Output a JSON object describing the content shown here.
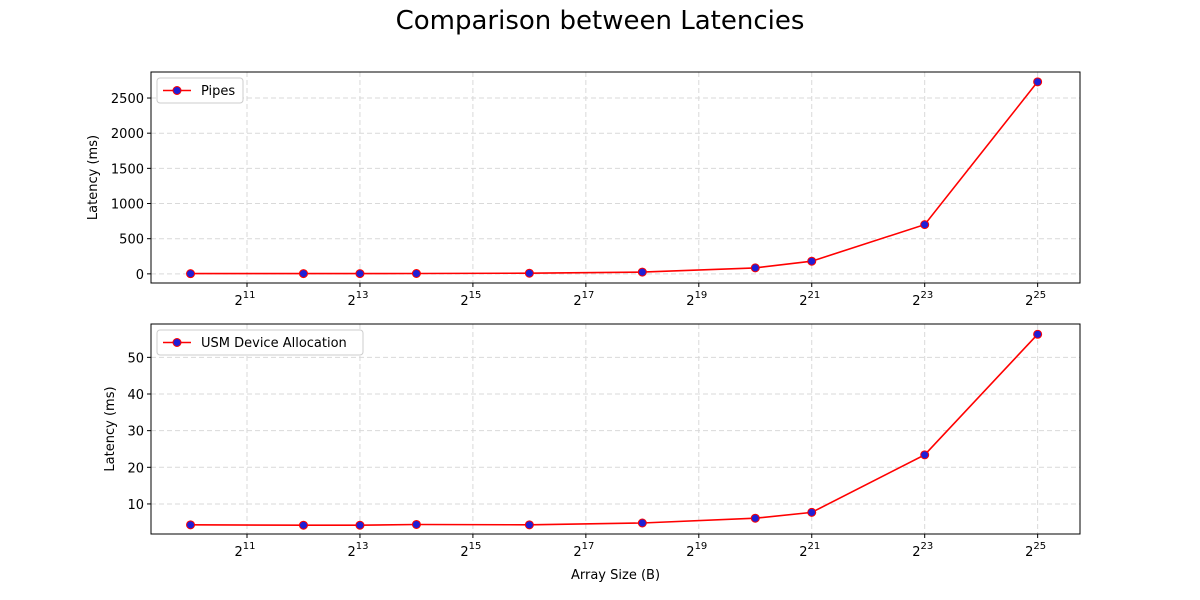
{
  "figure": {
    "title": "Comparison between Latencies"
  },
  "colors": {
    "line": "#ff0000",
    "marker_face": "#1f1fd6",
    "grid": "#d9d9d9"
  },
  "chart_data": [
    {
      "type": "line",
      "xlabel": "",
      "ylabel": "Latency (ms)",
      "xscale": "log2",
      "xlim_exp": [
        9.3,
        25.75
      ],
      "x_ticks": [
        "11",
        "13",
        "15",
        "17",
        "19",
        "21",
        "23",
        "25"
      ],
      "ylim": [
        -130,
        2870
      ],
      "y_ticks": [
        0,
        500,
        1000,
        1500,
        2000,
        2500
      ],
      "grid": true,
      "legend": "top-left",
      "series": [
        {
          "name": "Pipes",
          "x": [
            1024,
            4096,
            8192,
            16384,
            65536,
            262144,
            1048576,
            2097152,
            8388608,
            33554432
          ],
          "y": [
            3,
            4,
            4,
            5,
            9,
            25,
            85,
            180,
            700,
            2730
          ]
        }
      ]
    },
    {
      "type": "line",
      "xlabel": "Array Size (B)",
      "ylabel": "Latency (ms)",
      "xscale": "log2",
      "xlim_exp": [
        9.3,
        25.75
      ],
      "x_ticks": [
        "11",
        "13",
        "15",
        "17",
        "19",
        "21",
        "23",
        "25"
      ],
      "ylim": [
        1.8,
        59.1
      ],
      "y_ticks": [
        10,
        20,
        30,
        40,
        50
      ],
      "grid": true,
      "legend": "top-left",
      "series": [
        {
          "name": "USM Device Allocation",
          "x": [
            1024,
            4096,
            8192,
            16384,
            65536,
            262144,
            1048576,
            2097152,
            8388608,
            33554432
          ],
          "y": [
            4.3,
            4.2,
            4.2,
            4.4,
            4.3,
            4.8,
            6.1,
            7.7,
            23.4,
            56.3
          ]
        }
      ]
    }
  ]
}
